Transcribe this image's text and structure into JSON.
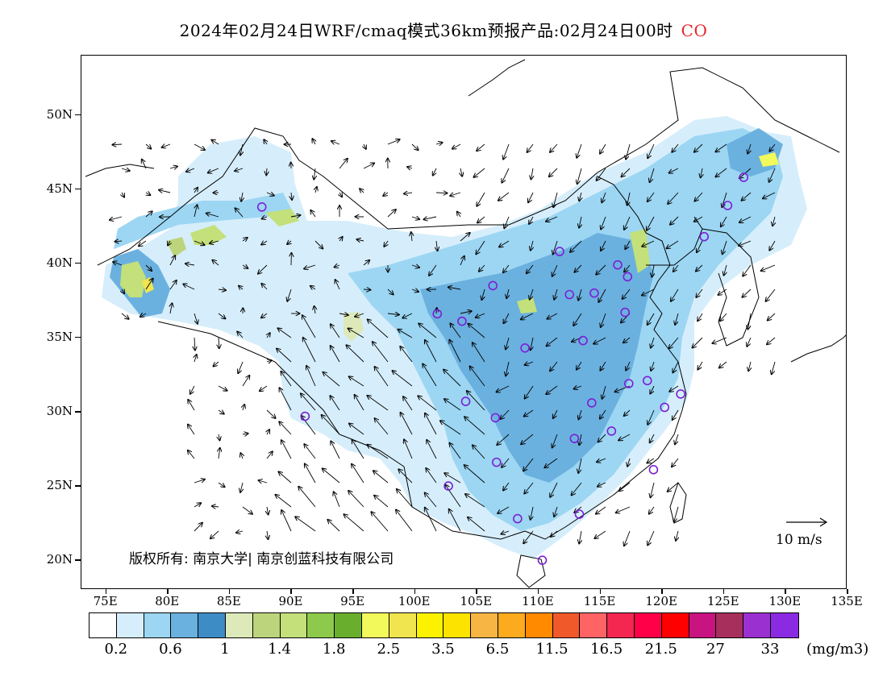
{
  "title": {
    "text": "2024年02月24日WRF/cmaq模式36km预报产品:02月24日00时",
    "species": "CO"
  },
  "axes": {
    "lat_labels": [
      "50N",
      "45N",
      "40N",
      "35N",
      "30N",
      "25N",
      "20N"
    ],
    "lon_labels": [
      "75E",
      "80E",
      "85E",
      "90E",
      "95E",
      "100E",
      "105E",
      "110E",
      "115E",
      "120E",
      "125E",
      "130E",
      "135E"
    ]
  },
  "copyright": "版权所有: 南京大学| 南京创蓝科技有限公司",
  "wind_scale": {
    "label": "10 m/s"
  },
  "colorbar": {
    "colors": [
      "#ffffff",
      "#d6eefb",
      "#9cd6f3",
      "#6bb1df",
      "#3e8cc6",
      "#dde9b8",
      "#bcd57c",
      "#c3e07a",
      "#8dca4c",
      "#6aae2e",
      "#f2f95b",
      "#f1e54f",
      "#fcf200",
      "#fde300",
      "#f7b543",
      "#fcaa1e",
      "#ff8a00",
      "#f0592a",
      "#ff6464",
      "#f32750",
      "#ff0048",
      "#ff0000",
      "#c81480",
      "#a72f5b",
      "#9b30d1",
      "#8a2be2"
    ],
    "labels": [
      "0.2",
      "0.6",
      "1",
      "1.4",
      "1.8",
      "2.5",
      "3.5",
      "6.5",
      "11.5",
      "16.5",
      "21.5",
      "27",
      "33"
    ],
    "unit": "(mg/m3)"
  },
  "stations": [
    {
      "lon": 87.6,
      "lat": 43.8
    },
    {
      "lon": 91.1,
      "lat": 29.7
    },
    {
      "lon": 101.8,
      "lat": 36.6
    },
    {
      "lon": 103.8,
      "lat": 36.1
    },
    {
      "lon": 106.3,
      "lat": 38.5
    },
    {
      "lon": 108.9,
      "lat": 34.3
    },
    {
      "lon": 111.7,
      "lat": 40.8
    },
    {
      "lon": 112.5,
      "lat": 37.9
    },
    {
      "lon": 114.5,
      "lat": 38.0
    },
    {
      "lon": 116.4,
      "lat": 39.9
    },
    {
      "lon": 117.2,
      "lat": 39.1
    },
    {
      "lon": 117.0,
      "lat": 36.7
    },
    {
      "lon": 113.6,
      "lat": 34.8
    },
    {
      "lon": 117.3,
      "lat": 31.9
    },
    {
      "lon": 118.8,
      "lat": 32.1
    },
    {
      "lon": 120.2,
      "lat": 30.3
    },
    {
      "lon": 121.5,
      "lat": 31.2
    },
    {
      "lon": 114.3,
      "lat": 30.6
    },
    {
      "lon": 112.9,
      "lat": 28.2
    },
    {
      "lon": 115.9,
      "lat": 28.7
    },
    {
      "lon": 119.3,
      "lat": 26.1
    },
    {
      "lon": 113.3,
      "lat": 23.1
    },
    {
      "lon": 108.3,
      "lat": 22.8
    },
    {
      "lon": 110.3,
      "lat": 20.0
    },
    {
      "lon": 106.6,
      "lat": 26.6
    },
    {
      "lon": 102.7,
      "lat": 25.0
    },
    {
      "lon": 104.1,
      "lat": 30.7
    },
    {
      "lon": 106.5,
      "lat": 29.6
    },
    {
      "lon": 126.6,
      "lat": 45.8
    },
    {
      "lon": 125.3,
      "lat": 43.9
    },
    {
      "lon": 123.4,
      "lat": 41.8
    }
  ]
}
